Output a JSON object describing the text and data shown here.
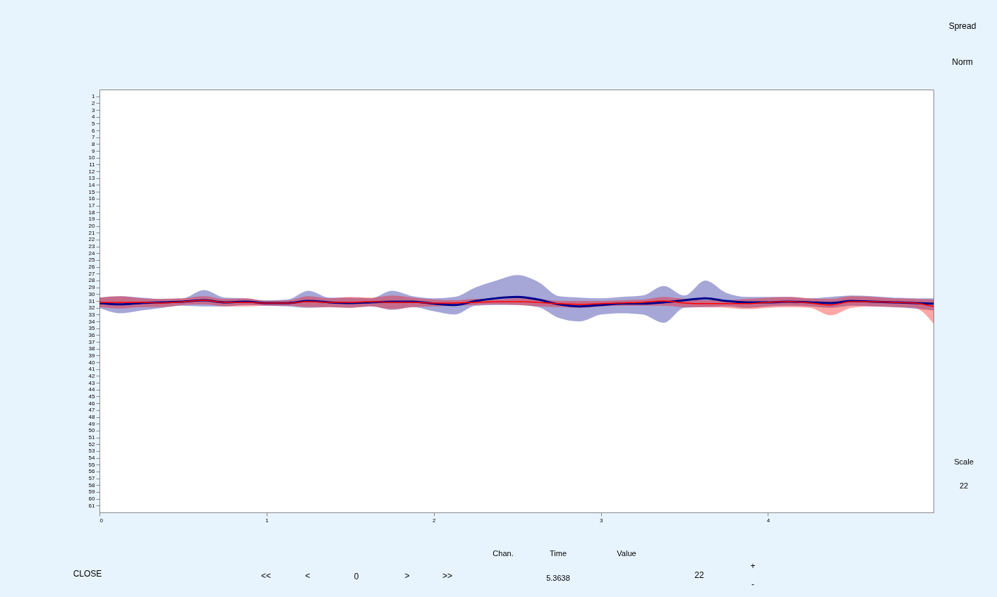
{
  "chart_data": {
    "type": "line",
    "x": [
      0,
      0.125,
      0.25,
      0.375,
      0.5,
      0.625,
      0.75,
      0.875,
      1.0,
      1.125,
      1.25,
      1.375,
      1.5,
      1.625,
      1.75,
      1.875,
      2.0,
      2.125,
      2.25,
      2.375,
      2.5,
      2.625,
      2.75,
      2.875,
      3.0,
      3.125,
      3.25,
      3.375,
      3.5,
      3.625,
      3.75,
      3.875,
      4.0,
      4.125,
      4.25,
      4.375,
      4.5,
      4.625,
      4.75,
      4.875,
      4.99
    ],
    "series": [
      {
        "color": "#00008b",
        "values": [
          31.3,
          31.5,
          31.3,
          31.2,
          31.1,
          30.9,
          31.2,
          31.1,
          31.3,
          31.3,
          31.0,
          31.2,
          31.3,
          31.2,
          31.1,
          31.1,
          31.4,
          31.6,
          31.0,
          30.6,
          30.4,
          30.8,
          31.5,
          31.8,
          31.6,
          31.4,
          31.4,
          31.2,
          30.9,
          30.6,
          31.0,
          31.2,
          31.2,
          31.1,
          31.2,
          31.3,
          31.0,
          31.1,
          31.2,
          31.3,
          31.4
        ],
        "upper": [
          30.5,
          30.3,
          30.5,
          30.7,
          30.6,
          29.4,
          30.5,
          30.6,
          30.9,
          30.8,
          29.5,
          30.5,
          30.5,
          30.6,
          29.5,
          30.3,
          30.6,
          30.4,
          29.0,
          28.0,
          27.2,
          28.2,
          30.3,
          30.5,
          30.6,
          30.4,
          30.2,
          28.8,
          30.2,
          28.0,
          29.8,
          30.4,
          30.4,
          30.4,
          30.6,
          30.4,
          30.2,
          30.3,
          30.5,
          30.6,
          30.6
        ],
        "lower": [
          32.0,
          32.8,
          32.4,
          32.0,
          31.7,
          31.8,
          31.8,
          31.6,
          31.7,
          31.8,
          32.0,
          31.9,
          32.0,
          31.8,
          32.3,
          31.9,
          32.5,
          33.0,
          31.7,
          31.6,
          31.6,
          31.9,
          33.5,
          34.0,
          33.0,
          32.8,
          33.0,
          34.2,
          32.0,
          31.9,
          31.8,
          32.0,
          31.8,
          31.7,
          31.8,
          32.0,
          31.7,
          31.8,
          31.9,
          32.1,
          32.4
        ]
      },
      {
        "color": "#ff0000",
        "values": [
          31.2,
          31.2,
          31.2,
          31.3,
          31.1,
          30.9,
          31.2,
          31.2,
          31.3,
          31.3,
          31.1,
          31.2,
          31.2,
          31.1,
          31.2,
          31.2,
          31.3,
          31.3,
          31.2,
          31.1,
          31.1,
          31.2,
          31.4,
          31.5,
          31.4,
          31.3,
          31.2,
          31.0,
          31.3,
          31.4,
          31.4,
          31.4,
          31.2,
          31.1,
          31.3,
          31.6,
          31.1,
          31.1,
          31.2,
          31.3,
          31.8
        ],
        "upper": [
          30.5,
          30.3,
          30.6,
          30.7,
          30.6,
          30.3,
          30.7,
          30.6,
          31.0,
          30.9,
          30.3,
          30.6,
          30.4,
          30.5,
          30.2,
          30.5,
          30.8,
          30.9,
          30.7,
          30.8,
          30.6,
          30.7,
          31.0,
          31.0,
          31.0,
          30.9,
          30.8,
          30.4,
          30.7,
          30.9,
          30.9,
          30.7,
          30.5,
          30.4,
          30.6,
          30.7,
          30.3,
          30.4,
          30.6,
          30.7,
          30.8
        ],
        "lower": [
          31.9,
          32.1,
          31.9,
          31.9,
          31.6,
          31.5,
          31.8,
          31.8,
          31.7,
          31.7,
          31.9,
          31.9,
          32.0,
          31.8,
          32.2,
          31.9,
          31.8,
          31.7,
          31.6,
          31.5,
          31.6,
          31.8,
          31.9,
          32.0,
          31.8,
          31.7,
          31.7,
          31.7,
          31.9,
          31.9,
          32.0,
          32.2,
          32.0,
          31.9,
          32.0,
          33.1,
          32.0,
          31.8,
          31.9,
          32.0,
          34.3
        ]
      }
    ],
    "xlim": [
      0,
      4.99
    ],
    "xticks": [
      0,
      1,
      2,
      3,
      4
    ],
    "ylim": [
      62,
      0
    ],
    "yticks": [
      1,
      2,
      3,
      4,
      5,
      6,
      7,
      8,
      9,
      10,
      11,
      12,
      13,
      14,
      15,
      16,
      17,
      18,
      19,
      20,
      21,
      22,
      23,
      24,
      25,
      26,
      27,
      28,
      29,
      30,
      31,
      32,
      33,
      34,
      35,
      36,
      37,
      38,
      39,
      40,
      41,
      42,
      43,
      44,
      45,
      46,
      47,
      48,
      49,
      50,
      51,
      52,
      53,
      54,
      55,
      56,
      57,
      58,
      59,
      60,
      61
    ],
    "grid": false,
    "marker": "none",
    "line_style": "solid",
    "annotations": [
      "Spread",
      "Norm",
      "Scale",
      "22",
      "Chan.",
      "Time",
      "Value",
      "5.3638",
      "CLOSE",
      "<<",
      "<",
      "0",
      ">",
      ">>",
      "22",
      "+",
      "-"
    ]
  }
}
